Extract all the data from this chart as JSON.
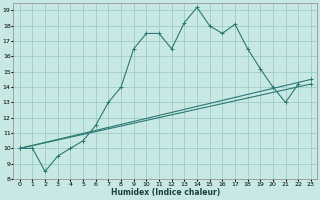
{
  "xlabel": "Humidex (Indice chaleur)",
  "background_color": "#c8e8e4",
  "grid_color": "#a0ccc8",
  "line_color": "#2a7a72",
  "xlim": [
    -0.5,
    23.5
  ],
  "ylim": [
    8,
    19.5
  ],
  "xticks": [
    0,
    1,
    2,
    3,
    4,
    5,
    6,
    7,
    8,
    9,
    10,
    11,
    12,
    13,
    14,
    15,
    16,
    17,
    18,
    19,
    20,
    21,
    22,
    23
  ],
  "yticks": [
    8,
    9,
    10,
    11,
    12,
    13,
    14,
    15,
    16,
    17,
    18,
    19
  ],
  "series1_x": [
    0,
    1,
    2,
    3,
    4,
    5,
    6,
    7,
    8,
    9,
    10,
    11,
    12,
    13,
    14,
    15,
    16,
    17,
    18,
    19,
    20,
    21,
    22
  ],
  "series1_y": [
    10,
    10,
    8.5,
    9.5,
    10,
    10.5,
    11.5,
    13,
    14,
    16.5,
    17.5,
    17.5,
    16.5,
    18.2,
    19.2,
    18,
    17.5,
    18.1,
    16.5,
    15.2,
    14,
    13,
    14.2
  ],
  "series2_x": [
    0,
    23
  ],
  "series2_y": [
    10,
    14.2
  ],
  "series3_x": [
    0,
    23
  ],
  "series3_y": [
    10,
    14.5
  ]
}
